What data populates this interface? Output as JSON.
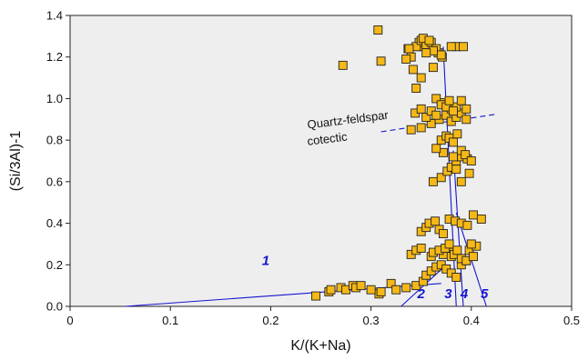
{
  "chart_data": {
    "type": "scatter",
    "title": "",
    "xlabel": "K/(K+Na)",
    "ylabel": "(Si/3Al)-1",
    "xlim": [
      0,
      0.5
    ],
    "ylim": [
      0,
      1.4
    ],
    "xticks": [
      0,
      0.1,
      0.2,
      0.3,
      0.4,
      0.5
    ],
    "xtick_labels": [
      "0",
      "0.1",
      "0.2",
      "0.3",
      "0.4",
      "0.5"
    ],
    "yticks": [
      0,
      0.2,
      0.4,
      0.6,
      0.8,
      1.0,
      1.2,
      1.4
    ],
    "ytick_labels": [
      "0.0",
      "0.2",
      "0.4",
      "0.6",
      "0.8",
      "1.0",
      "1.2",
      "1.4"
    ],
    "grid": false,
    "background": "#eeeeee",
    "colors": {
      "marker_fill": "#f5b816",
      "marker_edge": "#222222",
      "line": "#1515d0",
      "text": "#111111"
    },
    "points": {
      "x": [
        0.308,
        0.245,
        0.258,
        0.26,
        0.27,
        0.275,
        0.282,
        0.285,
        0.29,
        0.3,
        0.31,
        0.32,
        0.325,
        0.335,
        0.345,
        0.352,
        0.355,
        0.36,
        0.365,
        0.37,
        0.375,
        0.38,
        0.385,
        0.39,
        0.395,
        0.382,
        0.372,
        0.36,
        0.34,
        0.345,
        0.35,
        0.362,
        0.368,
        0.374,
        0.378,
        0.38,
        0.383,
        0.386,
        0.39,
        0.398,
        0.405,
        0.35,
        0.355,
        0.358,
        0.364,
        0.368,
        0.372,
        0.378,
        0.384,
        0.39,
        0.396,
        0.402,
        0.41,
        0.395,
        0.402,
        0.4,
        0.362,
        0.37,
        0.376,
        0.38,
        0.385,
        0.39,
        0.398,
        0.385,
        0.39,
        0.396,
        0.372,
        0.365,
        0.37,
        0.375,
        0.378,
        0.382,
        0.386,
        0.39,
        0.394,
        0.4,
        0.382,
        0.35,
        0.34,
        0.36,
        0.368,
        0.375,
        0.38,
        0.385,
        0.39,
        0.395,
        0.344,
        0.35,
        0.355,
        0.36,
        0.365,
        0.37,
        0.375,
        0.38,
        0.385,
        0.39,
        0.395,
        0.365,
        0.37,
        0.375,
        0.378,
        0.382,
        0.345,
        0.35,
        0.362,
        0.371,
        0.367,
        0.35,
        0.348,
        0.31,
        0.272,
        0.307,
        0.337,
        0.34,
        0.345,
        0.35,
        0.355,
        0.36,
        0.365,
        0.37,
        0.352,
        0.358,
        0.362,
        0.342,
        0.335,
        0.338,
        0.355,
        0.385,
        0.38,
        0.392
      ],
      "y": [
        0.06,
        0.05,
        0.07,
        0.08,
        0.09,
        0.08,
        0.1,
        0.09,
        0.1,
        0.08,
        0.07,
        0.11,
        0.08,
        0.09,
        0.1,
        0.12,
        0.15,
        0.17,
        0.19,
        0.2,
        0.18,
        0.16,
        0.14,
        0.2,
        0.22,
        0.26,
        0.25,
        0.24,
        0.25,
        0.27,
        0.28,
        0.26,
        0.27,
        0.28,
        0.3,
        0.24,
        0.25,
        0.27,
        0.23,
        0.27,
        0.29,
        0.36,
        0.38,
        0.4,
        0.41,
        0.37,
        0.35,
        0.42,
        0.41,
        0.4,
        0.39,
        0.44,
        0.42,
        0.22,
        0.24,
        0.3,
        0.6,
        0.62,
        0.65,
        0.67,
        0.66,
        0.6,
        0.64,
        0.7,
        0.72,
        0.71,
        0.74,
        0.76,
        0.8,
        0.82,
        0.81,
        0.79,
        0.83,
        0.75,
        0.73,
        0.7,
        0.72,
        0.86,
        0.85,
        0.88,
        0.9,
        0.92,
        0.89,
        0.91,
        0.93,
        0.9,
        0.93,
        0.95,
        0.91,
        0.94,
        0.92,
        0.98,
        0.97,
        0.95,
        0.96,
        0.99,
        0.95,
        1.0,
        0.97,
        0.96,
        0.99,
        0.94,
        1.05,
        1.1,
        1.15,
        1.2,
        1.22,
        1.25,
        1.27,
        1.18,
        1.16,
        1.33,
        1.24,
        1.2,
        1.25,
        1.28,
        1.26,
        1.27,
        1.24,
        1.21,
        1.29,
        1.28,
        1.23,
        1.14,
        1.19,
        1.24,
        1.22,
        1.25,
        1.25,
        1.25
      ]
    },
    "lines": [
      {
        "label": "1",
        "x": [
          0.055,
          0.37
        ],
        "y": [
          0.0,
          0.11
        ]
      },
      {
        "label": "2",
        "x": [
          0.33,
          0.375
        ],
        "y": [
          0.0,
          0.2
        ]
      },
      {
        "label": "3",
        "x": [
          0.385,
          0.372
        ],
        "y": [
          0.0,
          1.25
        ]
      },
      {
        "label": "4",
        "x": [
          0.392,
          0.382
        ],
        "y": [
          0.0,
          0.75
        ]
      },
      {
        "label": "5",
        "x": [
          0.415,
          0.385
        ],
        "y": [
          0.0,
          0.45
        ]
      }
    ],
    "dashed_line": {
      "x": [
        0.31,
        0.425
      ],
      "y": [
        0.84,
        0.925
      ]
    },
    "annotations": [
      "Quartz-feldspar",
      "cotectic"
    ],
    "line_labels": [
      {
        "text": "1",
        "x": 0.195,
        "y": 0.2
      },
      {
        "text": "2",
        "x": 0.35,
        "y": 0.04
      },
      {
        "text": "3",
        "x": 0.377,
        "y": 0.04
      },
      {
        "text": "4",
        "x": 0.393,
        "y": 0.04
      },
      {
        "text": "5",
        "x": 0.413,
        "y": 0.04
      }
    ]
  }
}
